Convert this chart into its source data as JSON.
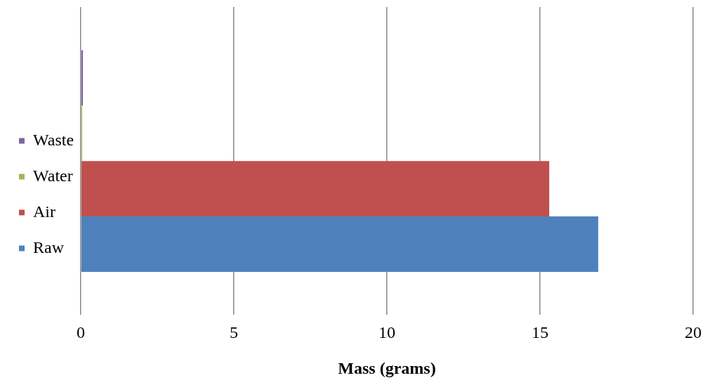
{
  "chart_data": {
    "type": "bar",
    "orientation": "horizontal",
    "xlabel": "Mass (grams)",
    "categories": [
      null
    ],
    "series": [
      {
        "name": "Waste",
        "color": "#8064a2",
        "values": [
          0.07
        ]
      },
      {
        "name": "Water",
        "color": "#9bbb59",
        "values": [
          0.02
        ]
      },
      {
        "name": "Air",
        "color": "#c0504d",
        "values": [
          15.3
        ]
      },
      {
        "name": "Raw",
        "color": "#4f81bd",
        "values": [
          16.9
        ]
      }
    ],
    "xlim": [
      0,
      20
    ],
    "xticks": [
      0,
      5,
      10,
      15,
      20
    ],
    "grid": "x",
    "legend": "left"
  }
}
